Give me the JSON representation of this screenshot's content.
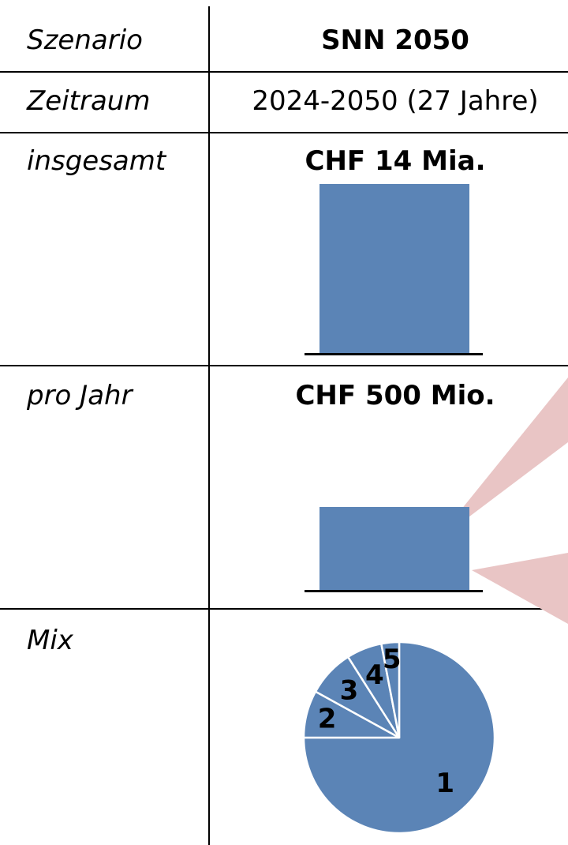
{
  "table": {
    "rows": [
      {
        "label": "Szenario",
        "value": "SNN 2050"
      },
      {
        "label": "Zeitraum",
        "value": "2024-2050 (27 Jahre)"
      },
      {
        "label": "insgesamt",
        "value": "CHF 14 Mia."
      },
      {
        "label": "pro Jahr",
        "value": "CHF 500 Mio."
      },
      {
        "label": "Mix",
        "value": ""
      }
    ]
  },
  "colors": {
    "bar": "#5b84b6",
    "callout": "#e9c5c5",
    "rule": "#000000"
  },
  "chart_data": [
    {
      "type": "bar",
      "categories": [
        "insgesamt"
      ],
      "values": [
        14000
      ],
      "unit": "Mio. CHF",
      "value_label": "CHF 14 Mia.",
      "ylim": [
        0,
        14000
      ]
    },
    {
      "type": "bar",
      "categories": [
        "pro Jahr"
      ],
      "values": [
        500
      ],
      "unit": "Mio. CHF",
      "value_label": "CHF 500 Mio.",
      "ylim": [
        0,
        1000
      ]
    },
    {
      "type": "pie",
      "categories": [
        "1",
        "2",
        "3",
        "4",
        "5"
      ],
      "values": [
        75,
        8,
        8,
        6,
        3
      ]
    }
  ]
}
